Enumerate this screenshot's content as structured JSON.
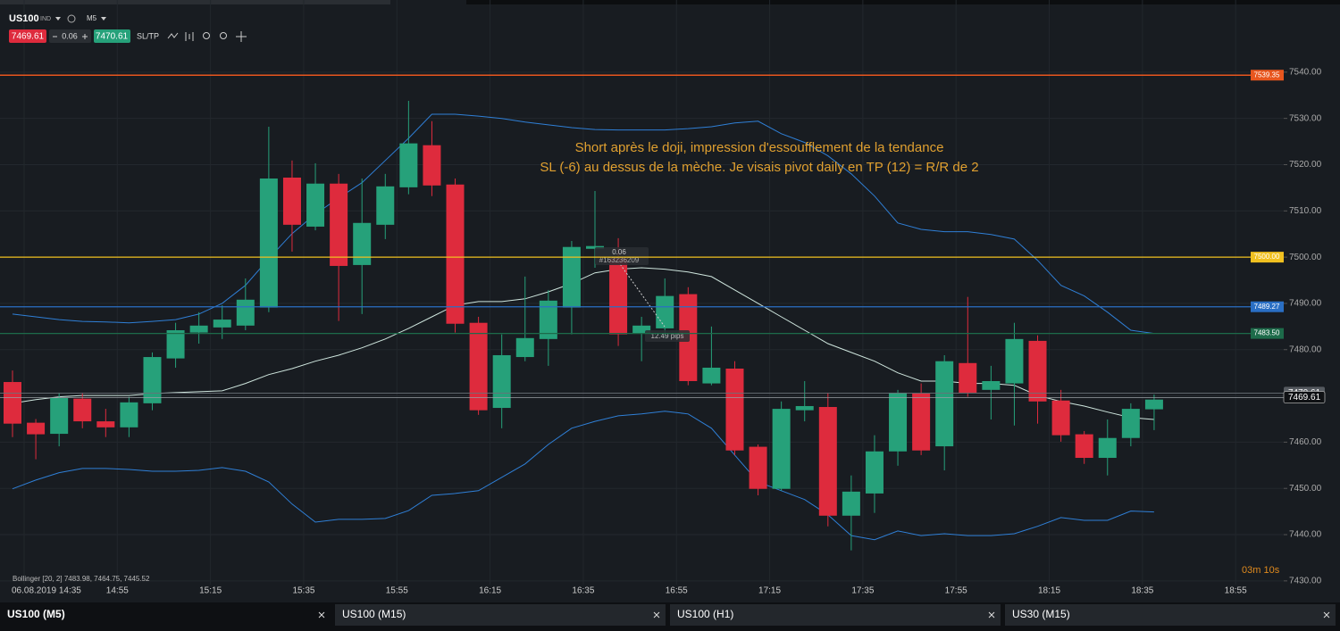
{
  "ui": {
    "symbol": "US100",
    "market": "IND",
    "timeframe": "M5",
    "bid": 7469.61,
    "ask": 7470.61,
    "spread": 0.06,
    "sltp": "SL/TP",
    "countdown": "03m 10s",
    "tabs": [
      "US100 (M5)",
      "US100 (M15)",
      "US100 (H1)",
      "US30 (M15)"
    ]
  },
  "chart_data": {
    "type": "candlestick",
    "categories": [
      "06.08.2019 14:35",
      null,
      null,
      null,
      "14:55",
      null,
      null,
      null,
      "15:15",
      null,
      null,
      null,
      "15:35",
      null,
      null,
      null,
      "15:55",
      null,
      null,
      null,
      "16:15",
      null,
      null,
      null,
      "16:35",
      null,
      null,
      null,
      "16:55",
      null,
      null,
      null,
      "17:15",
      null,
      null,
      null,
      "17:35",
      null,
      null,
      null,
      "17:55",
      null,
      null,
      null,
      "18:15",
      null,
      null,
      null,
      "18:35",
      null,
      null,
      null,
      "18:55"
    ],
    "open": [
      7473.0,
      7464.2,
      7461.8,
      7469.4,
      7464.5,
      7463.2,
      7468.4,
      7478.1,
      7483.7,
      7484.8,
      7485.2,
      7489.1,
      7517.2,
      7506.6,
      7515.9,
      7498.3,
      7507.0,
      7515.1,
      7524.2,
      7515.7,
      7485.8,
      7467.4,
      7478.4,
      7482.3,
      7489.1,
      7501.8,
      7499.7,
      7483.5,
      7484.6,
      7492.0,
      7472.7,
      7475.9,
      7459.0,
      7449.9,
      7466.9,
      7467.6,
      7444.1,
      7448.9,
      7458.0,
      7470.5,
      7459.1,
      7477.1,
      7471.3,
      7472.7,
      7481.9,
      7469.0,
      7461.7,
      7456.6,
      7460.9,
      7467.1,
      null,
      null,
      null
    ],
    "high": [
      7475.5,
      7465.0,
      7470.7,
      7470.7,
      7467.2,
      7469.8,
      7479.4,
      7485.8,
      7488.1,
      7489.6,
      7495.4,
      7528.2,
      7520.9,
      7520.3,
      7518.0,
      7517.0,
      7518.0,
      7533.8,
      7529.4,
      7517.0,
      7487.1,
      7483.3,
      7495.8,
      7492.9,
      7503.5,
      7514.3,
      7504.1,
      7487.1,
      7495.4,
      7493.5,
      7485.0,
      7477.5,
      7459.5,
      7468.8,
      7473.2,
      7470.7,
      7452.8,
      7461.5,
      7471.3,
      7472.7,
      7478.8,
      7491.4,
      7476.5,
      7485.8,
      7483.1,
      7471.3,
      7462.4,
      7464.9,
      7468.4,
      7470.3,
      null,
      null,
      null
    ],
    "low": [
      7461.1,
      7456.3,
      7459.1,
      7463.0,
      7461.1,
      7461.1,
      7466.9,
      7476.1,
      7481.3,
      7482.3,
      7484.2,
      7488.1,
      7501.2,
      7505.8,
      7486.2,
      7487.7,
      7503.9,
      7513.6,
      7513.2,
      7483.7,
      7465.9,
      7463.0,
      7477.5,
      7476.5,
      7483.3,
      7497.7,
      7480.8,
      7477.5,
      7482.3,
      7472.3,
      7472.3,
      7457.2,
      7448.5,
      7449.5,
      7464.5,
      7441.8,
      7436.6,
      7444.7,
      7454.9,
      7457.2,
      7453.9,
      7469.8,
      7464.9,
      7463.6,
      7464.0,
      7460.1,
      7455.3,
      7452.8,
      7459.1,
      7462.6,
      null,
      null,
      null
    ],
    "close": [
      7464.0,
      7461.7,
      7469.6,
      7464.5,
      7463.2,
      7468.6,
      7478.4,
      7484.2,
      7485.2,
      7486.5,
      7490.8,
      7517.0,
      7507.0,
      7515.9,
      7498.1,
      7507.4,
      7515.3,
      7524.6,
      7515.5,
      7485.6,
      7466.9,
      7478.8,
      7482.5,
      7490.6,
      7502.2,
      7502.4,
      7483.3,
      7485.2,
      7491.6,
      7473.2,
      7476.1,
      7458.2,
      7449.9,
      7467.2,
      7467.8,
      7444.1,
      7449.3,
      7458.0,
      7470.7,
      7458.2,
      7477.5,
      7470.7,
      7473.2,
      7482.3,
      7468.8,
      7461.5,
      7456.6,
      7460.9,
      7467.2,
      7469.2,
      null,
      null,
      null
    ],
    "up_color": "#26a17a",
    "down_color": "#de2b3d",
    "series": [
      {
        "color": "#2f7fd6",
        "values": [
          7487.7,
          7487.1,
          7486.5,
          7486.1,
          7486.0,
          7485.8,
          7486.1,
          7486.5,
          7487.7,
          7490.0,
          7493.9,
          7499.7,
          7505.1,
          7509.3,
          7512.8,
          7516.1,
          7520.9,
          7525.7,
          7530.9,
          7530.9,
          7530.5,
          7530.0,
          7529.2,
          7528.6,
          7528.0,
          7527.6,
          7527.5,
          7527.5,
          7527.5,
          7527.8,
          7528.2,
          7529.0,
          7529.4,
          7526.7,
          7524.8,
          7521.9,
          7518.0,
          7513.2,
          7507.4,
          7506.0,
          7505.5,
          7505.5,
          7504.9,
          7503.9,
          7499.3,
          7493.9,
          7491.6,
          7488.1,
          7484.2,
          7483.5,
          null,
          null,
          null
        ]
      },
      {
        "color": "#cfe6de",
        "values": [
          7468.4,
          7469.2,
          7469.8,
          7470.1,
          7470.1,
          7470.1,
          7470.5,
          7470.7,
          7470.9,
          7471.1,
          7472.7,
          7474.6,
          7475.9,
          7477.5,
          7478.8,
          7480.4,
          7482.3,
          7484.6,
          7487.1,
          7489.6,
          7490.4,
          7490.4,
          7491.0,
          7492.5,
          7494.3,
          7496.6,
          7497.4,
          7497.7,
          7497.4,
          7496.8,
          7495.8,
          7492.9,
          7490.0,
          7487.1,
          7484.2,
          7481.3,
          7479.4,
          7477.5,
          7475.0,
          7473.2,
          7473.2,
          7472.7,
          7472.7,
          7472.3,
          7470.1,
          7468.8,
          7467.8,
          7466.5,
          7465.3,
          7464.9,
          null,
          null,
          null
        ]
      },
      {
        "color": "#2f7fd6",
        "values": [
          7449.9,
          7451.8,
          7453.4,
          7454.3,
          7454.3,
          7454.1,
          7453.7,
          7453.7,
          7453.9,
          7454.5,
          7453.7,
          7451.4,
          7446.6,
          7442.7,
          7443.3,
          7443.3,
          7443.5,
          7445.2,
          7448.5,
          7448.9,
          7449.5,
          7452.4,
          7455.3,
          7459.5,
          7463.0,
          7464.5,
          7465.7,
          7466.1,
          7466.7,
          7466.1,
          7463.0,
          7457.2,
          7451.4,
          7449.5,
          7447.6,
          7444.3,
          7439.8,
          7438.9,
          7440.8,
          7439.8,
          7440.2,
          7439.8,
          7439.8,
          7440.2,
          7441.8,
          7443.7,
          7443.1,
          7443.1,
          7445.1,
          7444.9,
          null,
          null,
          null
        ]
      }
    ],
    "indicator_label": "Bollinger [20, 2] 7483.98, 7464.75, 7445.52",
    "levels": [
      {
        "value": 7539.35,
        "color": "#e8561e"
      },
      {
        "value": 7500.0,
        "label": "7500.00",
        "color": "#f0c020"
      },
      {
        "value": 7489.27,
        "color": "#2a6fc4"
      },
      {
        "value": 7483.5,
        "label": "7483.50",
        "color": "#1d6b4a"
      }
    ],
    "annotations": [
      "Short après le doji, impression d'essoufflement de la tendance",
      "SL (-6) au dessus de la mèche. Je visais pivot daily en TP (12) = R/R de 2"
    ],
    "trade": {
      "volume": 0.06,
      "id": "#163236209",
      "result": "12.49 pips"
    },
    "ylim": [
      7429.2,
      7555.6
    ],
    "yticks": [
      {
        "value": 7430,
        "label": "7430.00"
      },
      {
        "value": 7440,
        "label": "7440.00"
      },
      {
        "value": 7450,
        "label": "7450.00"
      },
      {
        "value": 7460,
        "label": "7460.00"
      },
      {
        "value": 7470,
        "label": "7470.00"
      },
      {
        "value": 7480,
        "label": "7480.00"
      },
      {
        "value": 7490,
        "label": "7490.00"
      },
      {
        "value": 7500,
        "label": "7500.00"
      },
      {
        "value": 7510,
        "label": "7510.00"
      },
      {
        "value": 7520,
        "label": "7520.00"
      },
      {
        "value": 7530,
        "label": "7530.00"
      },
      {
        "value": 7540,
        "label": "7540.00"
      }
    ],
    "grid": true
  }
}
